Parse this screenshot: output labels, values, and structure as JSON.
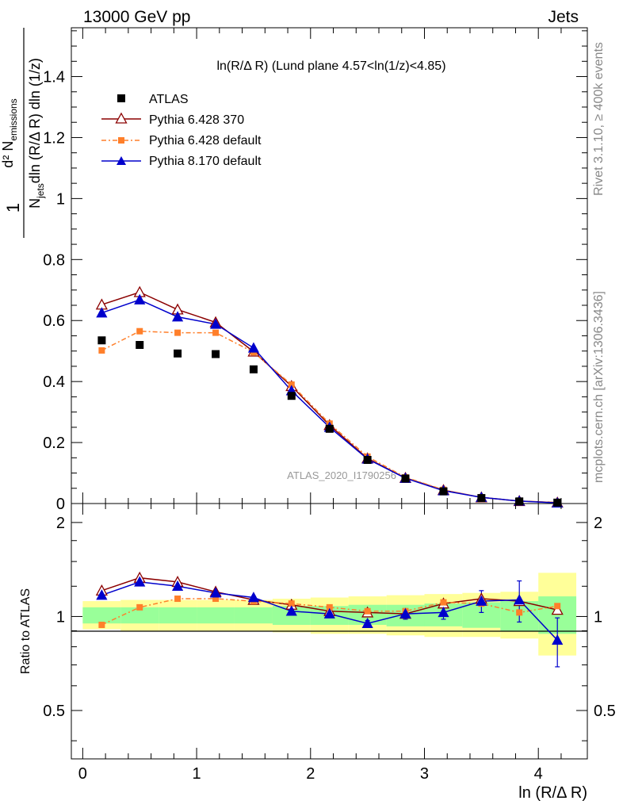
{
  "header": {
    "left": "13000 GeV pp",
    "right": "Jets"
  },
  "side_labels": {
    "rivet": "Rivet 3.1.10, ≥ 400k events",
    "mcplots": "mcplots.cern.ch [arXiv:1306.3436]"
  },
  "colors": {
    "atlas": "#000000",
    "pythia6_370": "#8b0000",
    "pythia6_default": "#ff7f2a",
    "pythia8_default": "#0000cc",
    "band_inner": "#99ff99",
    "band_outer": "#ffff99"
  },
  "chart_data": [
    {
      "type": "scatter",
      "title": "ln(R/Δ R) (Lund plane 4.57<ln(1/z)<4.85)",
      "watermark": "ATLAS_2020_I1790256",
      "ylabel": "1/N_jets dln (R/Δ R) dln (1/z) d² N_emissions",
      "ylabel_parts": {
        "frac_num": "1",
        "d2": "d² N",
        "emissions": "emissions",
        "njets": "N",
        "jets": "jets",
        "denom_rest": "dln (R/Δ R) dln (1/z)"
      },
      "xlim": [
        -0.1,
        4.43
      ],
      "ylim": [
        0,
        1.56
      ],
      "yticks": [
        0,
        0.2,
        0.4,
        0.6,
        0.8,
        1,
        1.2,
        1.4
      ],
      "ytick_labels": [
        "0",
        "0.2",
        "0.4",
        "0.6",
        "0.8",
        "1",
        "1.2",
        "1.4"
      ],
      "x": [
        0.167,
        0.5,
        0.833,
        1.167,
        1.5,
        1.833,
        2.167,
        2.5,
        2.833,
        3.167,
        3.5,
        3.833,
        4.167
      ],
      "series": [
        {
          "name": "ATLAS",
          "style": "square",
          "values": [
            0.535,
            0.52,
            0.492,
            0.49,
            0.44,
            0.353,
            0.245,
            0.143,
            0.082,
            0.04,
            0.018,
            0.007,
            0.003
          ]
        },
        {
          "name": "Pythia 6.428 370",
          "style": "open-triangle",
          "values": [
            0.652,
            0.693,
            0.636,
            0.594,
            0.498,
            0.385,
            0.257,
            0.148,
            0.084,
            0.044,
            0.02,
            0.008,
            0.003
          ]
        },
        {
          "name": "Pythia 6.428 default",
          "style": "orange-dashdot-square",
          "values": [
            0.502,
            0.565,
            0.56,
            0.56,
            0.496,
            0.39,
            0.262,
            0.154,
            0.086,
            0.045,
            0.02,
            0.008,
            0.003
          ]
        },
        {
          "name": "Pythia 8.170 default",
          "style": "filled-triangle",
          "values": [
            0.625,
            0.668,
            0.612,
            0.588,
            0.51,
            0.37,
            0.25,
            0.146,
            0.083,
            0.042,
            0.02,
            0.008,
            0.002
          ]
        }
      ]
    },
    {
      "type": "line",
      "ylabel": "Ratio to ATLAS",
      "xlabel": "ln (R/Δ R)",
      "xlim": [
        -0.1,
        4.43
      ],
      "ylim": [
        0.35,
        2.3
      ],
      "yscale": "log",
      "xticks": [
        0,
        1,
        2,
        3,
        4
      ],
      "xtick_labels": [
        "0",
        "1",
        "2",
        "3",
        "4"
      ],
      "yticks": [
        0.5,
        1,
        2
      ],
      "ytick_labels": [
        "0.5",
        "1",
        "2"
      ],
      "bin_edges": [
        0,
        0.333,
        0.667,
        1.0,
        1.333,
        1.667,
        2.0,
        2.333,
        2.667,
        3.0,
        3.333,
        3.667,
        4.0,
        4.333
      ],
      "band_inner": [
        [
          0.95,
          1.07
        ],
        [
          0.95,
          1.07
        ],
        [
          0.95,
          1.07
        ],
        [
          0.95,
          1.07
        ],
        [
          0.95,
          1.07
        ],
        [
          0.94,
          1.08
        ],
        [
          0.94,
          1.08
        ],
        [
          0.94,
          1.09
        ],
        [
          0.93,
          1.09
        ],
        [
          0.93,
          1.1
        ],
        [
          0.92,
          1.11
        ],
        [
          0.9,
          1.12
        ],
        [
          0.88,
          1.16
        ]
      ],
      "band_outer": [
        [
          0.91,
          1.12
        ],
        [
          0.9,
          1.13
        ],
        [
          0.9,
          1.13
        ],
        [
          0.9,
          1.13
        ],
        [
          0.9,
          1.13
        ],
        [
          0.89,
          1.14
        ],
        [
          0.88,
          1.15
        ],
        [
          0.88,
          1.16
        ],
        [
          0.87,
          1.17
        ],
        [
          0.86,
          1.18
        ],
        [
          0.86,
          1.19
        ],
        [
          0.85,
          1.2
        ],
        [
          0.75,
          1.38
        ]
      ],
      "x": [
        0.167,
        0.5,
        0.833,
        1.167,
        1.5,
        1.833,
        2.167,
        2.5,
        2.833,
        3.167,
        3.5,
        3.833,
        4.167
      ],
      "series": [
        {
          "name": "Pythia 6.428 370",
          "values": [
            1.21,
            1.33,
            1.29,
            1.2,
            1.13,
            1.09,
            1.04,
            1.03,
            1.02,
            1.1,
            1.14,
            1.12,
            1.05
          ],
          "err": [
            0,
            0,
            0,
            0,
            0,
            0,
            0,
            0,
            0,
            0,
            0,
            0,
            0
          ]
        },
        {
          "name": "Pythia 6.428 default",
          "values": [
            0.94,
            1.07,
            1.14,
            1.14,
            1.12,
            1.1,
            1.07,
            1.04,
            1.04,
            1.11,
            1.1,
            1.03,
            1.08
          ],
          "err": [
            0,
            0,
            0,
            0,
            0,
            0,
            0,
            0,
            0,
            0,
            0,
            0,
            0
          ]
        },
        {
          "name": "Pythia 8.170 default",
          "values": [
            1.17,
            1.29,
            1.25,
            1.19,
            1.15,
            1.04,
            1.02,
            0.95,
            1.02,
            1.03,
            1.12,
            1.13,
            0.84
          ],
          "err": [
            0.005,
            0.005,
            0.005,
            0.005,
            0.01,
            0.01,
            0.01,
            0.02,
            0.04,
            0.05,
            0.09,
            0.17,
            0.15
          ]
        }
      ]
    }
  ]
}
